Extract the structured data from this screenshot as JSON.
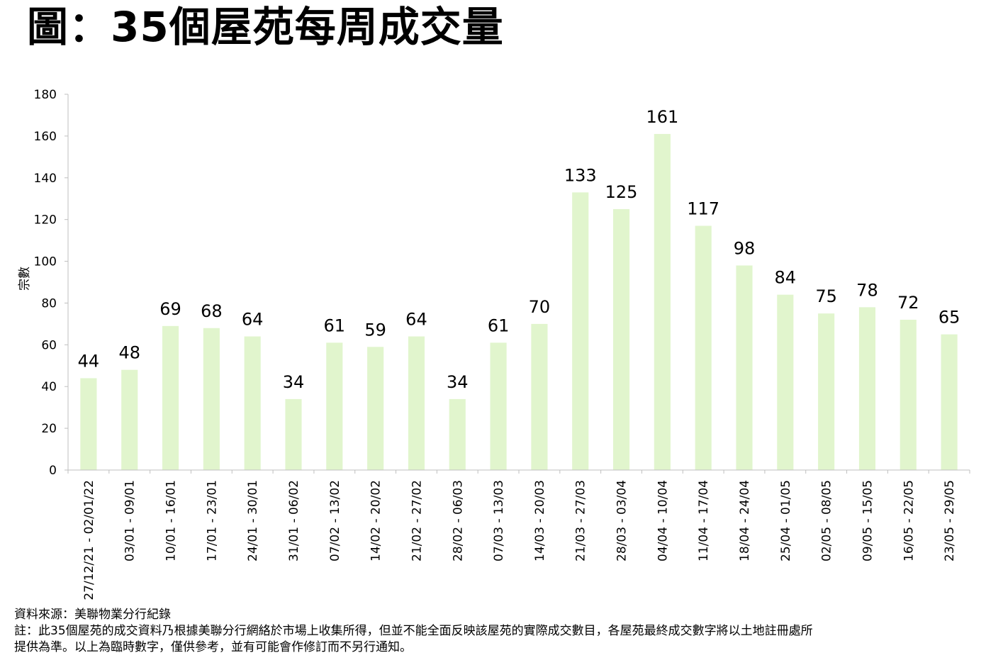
{
  "title": "圖：35個屋苑每周成交量",
  "chart_data": {
    "type": "bar",
    "title": "圖：35個屋苑每周成交量",
    "xlabel": "",
    "ylabel": "宗數",
    "ylim": [
      0,
      180
    ],
    "yticks": [
      0,
      20,
      40,
      60,
      80,
      100,
      120,
      140,
      160,
      180
    ],
    "grid": false,
    "legend": "none",
    "bar_color": "#e1f5cd",
    "axis_color": "#bfbfbf",
    "categories": [
      "27/12/21 - 02/01/22",
      "03/01 - 09/01",
      "10/01 - 16/01",
      "17/01 - 23/01",
      "24/01 - 30/01",
      "31/01 - 06/02",
      "07/02 - 13/02",
      "14/02 - 20/02",
      "21/02 - 27/02",
      "28/02 - 06/03",
      "07/03 - 13/03",
      "14/03 - 20/03",
      "21/03 - 27/03",
      "28/03 - 03/04",
      "04/04 - 10/04",
      "11/04 - 17/04",
      "18/04 - 24/04",
      "25/04 - 01/05",
      "02/05 - 08/05",
      "09/05 - 15/05",
      "16/05 - 22/05",
      "23/05 - 29/05"
    ],
    "values": [
      44,
      48,
      69,
      68,
      64,
      34,
      61,
      59,
      64,
      34,
      61,
      70,
      133,
      125,
      161,
      117,
      98,
      84,
      75,
      78,
      72,
      65
    ]
  },
  "notes": {
    "source": "資料來源：美聯物業分行紀錄",
    "note_line1": "註：此35個屋苑的成交資料乃根據美聯分行網絡於市場上收集所得，但並不能全面反映該屋苑的實際成交數目，各屋苑最終成交數字將以土地註冊處所",
    "note_line2": "提供為準。以上為臨時數字，僅供參考，並有可能會作修訂而不另行通知。"
  }
}
